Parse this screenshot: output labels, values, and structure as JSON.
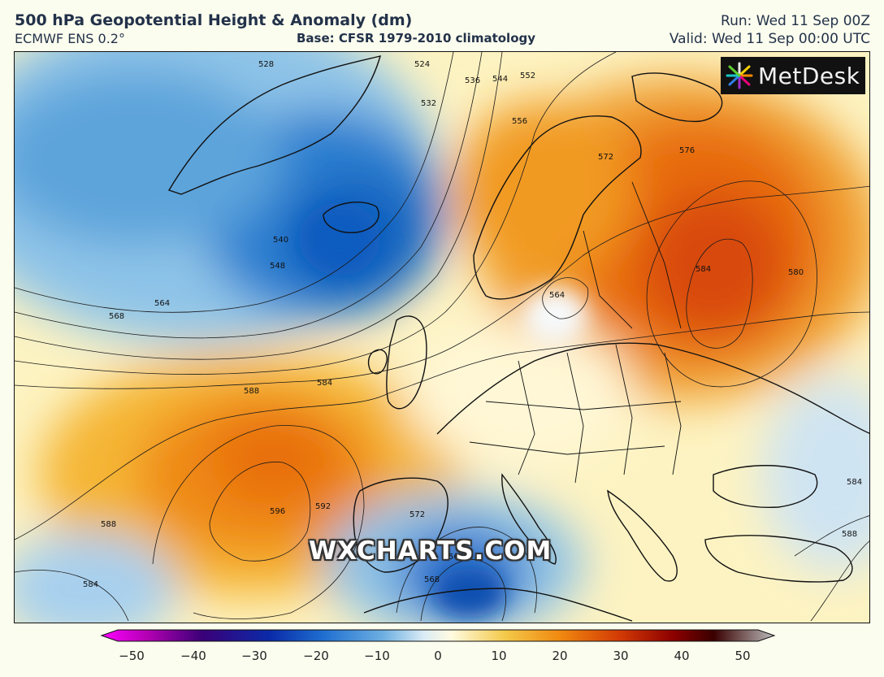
{
  "header": {
    "title": "500 hPa Geopotential Height & Anomaly (dm)",
    "model": "ECMWF ENS 0.2°",
    "base": "Base: CFSR 1979-2010 climatology",
    "run": "Run: Wed 11 Sep 00Z",
    "valid": "Valid: Wed 11 Sep 00:00 UTC"
  },
  "logo": {
    "text": "MetDesk",
    "icon": "metdesk-starburst-icon"
  },
  "watermark": "WXCHARTS.COM",
  "contour_labels": [
    "528",
    "524",
    "536",
    "544",
    "552",
    "532",
    "556",
    "540",
    "548",
    "564",
    "568",
    "572",
    "576",
    "584",
    "580",
    "584",
    "588",
    "596",
    "592",
    "588",
    "584",
    "572",
    "564",
    "568",
    "564",
    "584",
    "588"
  ],
  "colorbar": {
    "ticks": [
      "−50",
      "−40",
      "−30",
      "−20",
      "−10",
      "0",
      "10",
      "20",
      "30",
      "40",
      "50"
    ],
    "colors": [
      "#ff00ff",
      "#b000b0",
      "#3a0078",
      "#0a2aa8",
      "#1f6fd0",
      "#6fb0e2",
      "#dcecf5",
      "#fffbe0",
      "#f3c94a",
      "#f08a10",
      "#d23a05",
      "#8c0000",
      "#3a0000",
      "#aaaaaa"
    ]
  },
  "anomaly_features": [
    {
      "name": "greenland-iceland-trough",
      "sign": "negative"
    },
    {
      "name": "mid-atlantic-ridge",
      "sign": "positive"
    },
    {
      "name": "western-russia-ridge",
      "sign": "positive"
    },
    {
      "name": "western-mediterranean-low",
      "sign": "negative"
    },
    {
      "name": "baltic-cutoff",
      "sign": "negative"
    }
  ]
}
